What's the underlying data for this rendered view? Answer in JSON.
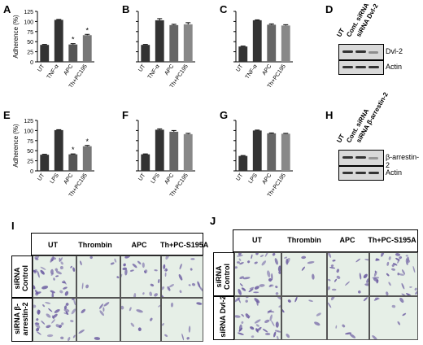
{
  "figure": {
    "panel_letters": [
      "A",
      "B",
      "C",
      "D",
      "E",
      "F",
      "G",
      "H",
      "I",
      "J"
    ],
    "ylabel": "Adherence (%)",
    "yticks": [
      "0",
      "25",
      "50",
      "75",
      "100",
      "125"
    ]
  },
  "chart_data": [
    {
      "panel": "A",
      "type": "bar",
      "categories": [
        "UT",
        "TNF-α",
        "APC",
        "Th+PC195"
      ],
      "values": [
        42,
        104,
        43,
        66
      ],
      "errors": [
        1,
        1,
        2,
        2
      ],
      "significant": [
        false,
        false,
        true,
        true
      ],
      "colors": [
        "#333333",
        "#333333",
        "#555555",
        "#777777"
      ],
      "ylim": [
        0,
        125
      ],
      "ylabel": "Adherence (%)"
    },
    {
      "panel": "B",
      "type": "bar",
      "categories": [
        "UT",
        "TNF-α",
        "APC",
        "Th+PC195"
      ],
      "values": [
        42,
        103,
        91,
        93
      ],
      "errors": [
        1,
        4,
        2,
        4
      ],
      "significant": [
        false,
        false,
        false,
        false
      ],
      "colors": [
        "#333333",
        "#333333",
        "#666666",
        "#888888"
      ],
      "ylim": [
        0,
        125
      ],
      "ylabel": ""
    },
    {
      "panel": "C",
      "type": "bar",
      "categories": [
        "UT",
        "TNF-α",
        "APC",
        "Th+PC195"
      ],
      "values": [
        38,
        103,
        92,
        90
      ],
      "errors": [
        1,
        1,
        2,
        2
      ],
      "significant": [
        false,
        false,
        false,
        false
      ],
      "colors": [
        "#333333",
        "#333333",
        "#666666",
        "#888888"
      ],
      "ylim": [
        0,
        125
      ],
      "ylabel": ""
    },
    {
      "panel": "E",
      "type": "bar",
      "categories": [
        "UT",
        "LPS",
        "APC",
        "Th+PC195"
      ],
      "values": [
        40,
        101,
        41,
        61
      ],
      "errors": [
        1,
        1,
        1,
        2
      ],
      "significant": [
        false,
        false,
        true,
        true
      ],
      "colors": [
        "#333333",
        "#333333",
        "#555555",
        "#777777"
      ],
      "ylim": [
        0,
        125
      ],
      "ylabel": "Adherence (%)"
    },
    {
      "panel": "F",
      "type": "bar",
      "categories": [
        "UT",
        "LPS",
        "APC",
        "Th+PC195"
      ],
      "values": [
        41,
        102,
        97,
        91
      ],
      "errors": [
        1,
        2,
        3,
        2
      ],
      "significant": [
        false,
        false,
        false,
        false
      ],
      "colors": [
        "#333333",
        "#333333",
        "#666666",
        "#888888"
      ],
      "ylim": [
        0,
        125
      ],
      "ylabel": ""
    },
    {
      "panel": "G",
      "type": "bar",
      "categories": [
        "UT",
        "LPS",
        "APC",
        "Th+PC195"
      ],
      "values": [
        37,
        100,
        93,
        92
      ],
      "errors": [
        1,
        1,
        1,
        1
      ],
      "significant": [
        false,
        false,
        false,
        false
      ],
      "colors": [
        "#333333",
        "#333333",
        "#666666",
        "#888888"
      ],
      "ylim": [
        0,
        125
      ],
      "ylabel": ""
    }
  ],
  "blots": [
    {
      "panel": "D",
      "lanes": [
        "UT",
        "Cont. siRNA",
        "siRNA Dvl-2"
      ],
      "rows": [
        "Dvl-2",
        "Actin"
      ]
    },
    {
      "panel": "H",
      "lanes": [
        "UT",
        "Cont. siRNA",
        "siRNA β-arrestin-2"
      ],
      "rows": [
        "β-arrestin-2",
        "Actin"
      ]
    }
  ],
  "micrographs": [
    {
      "panel": "I",
      "columns": [
        "UT",
        "Thrombin",
        "APC",
        "Th+PC-S195A"
      ],
      "rows": [
        "siRNA Control",
        "siRNA β-arrestin-2"
      ]
    },
    {
      "panel": "J",
      "columns": [
        "UT",
        "Thrombin",
        "APC",
        "Th+PC-S195A"
      ],
      "rows": [
        "siRNA Control",
        "siRNA Dvl-2"
      ]
    }
  ],
  "colors": {
    "bar_dark": "#333333",
    "bar_mid": "#666666",
    "bar_light": "#888888",
    "micro_bg": "#e6efe7",
    "stain": "#6a5aa0"
  },
  "significance_marker": "*"
}
